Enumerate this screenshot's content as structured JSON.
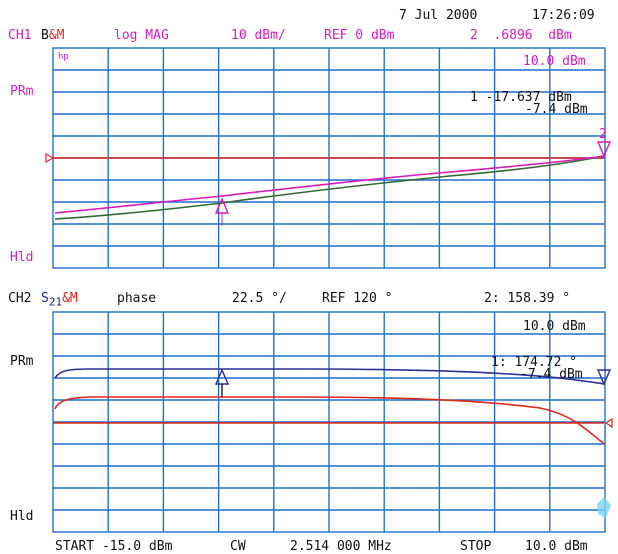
{
  "header": {
    "date": "7 Jul 2000",
    "time": "17:26:09"
  },
  "ch1": {
    "label": "CH1",
    "meas": "B&M",
    "format": "log MAG",
    "scale": "10 dBm/",
    "ref": "REF 0 dBm",
    "marker_value": "2  .6896  dBm",
    "top_right_value": "10.0 dBm",
    "marker_readout_1": "1 -17.637 dBm",
    "marker_readout_2": "-7.4 dBm",
    "hp_tag": "hp",
    "pr_label": "PRm",
    "hld_label": "Hld",
    "marker_1_label": "1",
    "marker_2_label": "2"
  },
  "ch2": {
    "label": "CH2",
    "meas_s": "S",
    "meas_sub": "21",
    "meas_m": "&M",
    "format": "phase",
    "scale": "22.5 °/",
    "ref": "REF 120 °",
    "marker_value": "2: 158.39 °",
    "top_right_value": "10.0 dBm",
    "marker_readout_1": "1: 174.72 °",
    "marker_readout_2": "-7.4 dBm",
    "pr_label": "PRm",
    "hld_label": "Hld"
  },
  "footer": {
    "start": "START -15.0 dBm",
    "cw": "CW",
    "freq": "2.514 000 MHz",
    "stop": "STOP",
    "stop_val": "10.0 dBm"
  },
  "colors": {
    "grid": "#1f6fd0",
    "magenta": "#d81bbd",
    "green": "#2f6b2e",
    "red": "#e1261c",
    "navy": "#2b2f95",
    "text": "#111111"
  }
}
